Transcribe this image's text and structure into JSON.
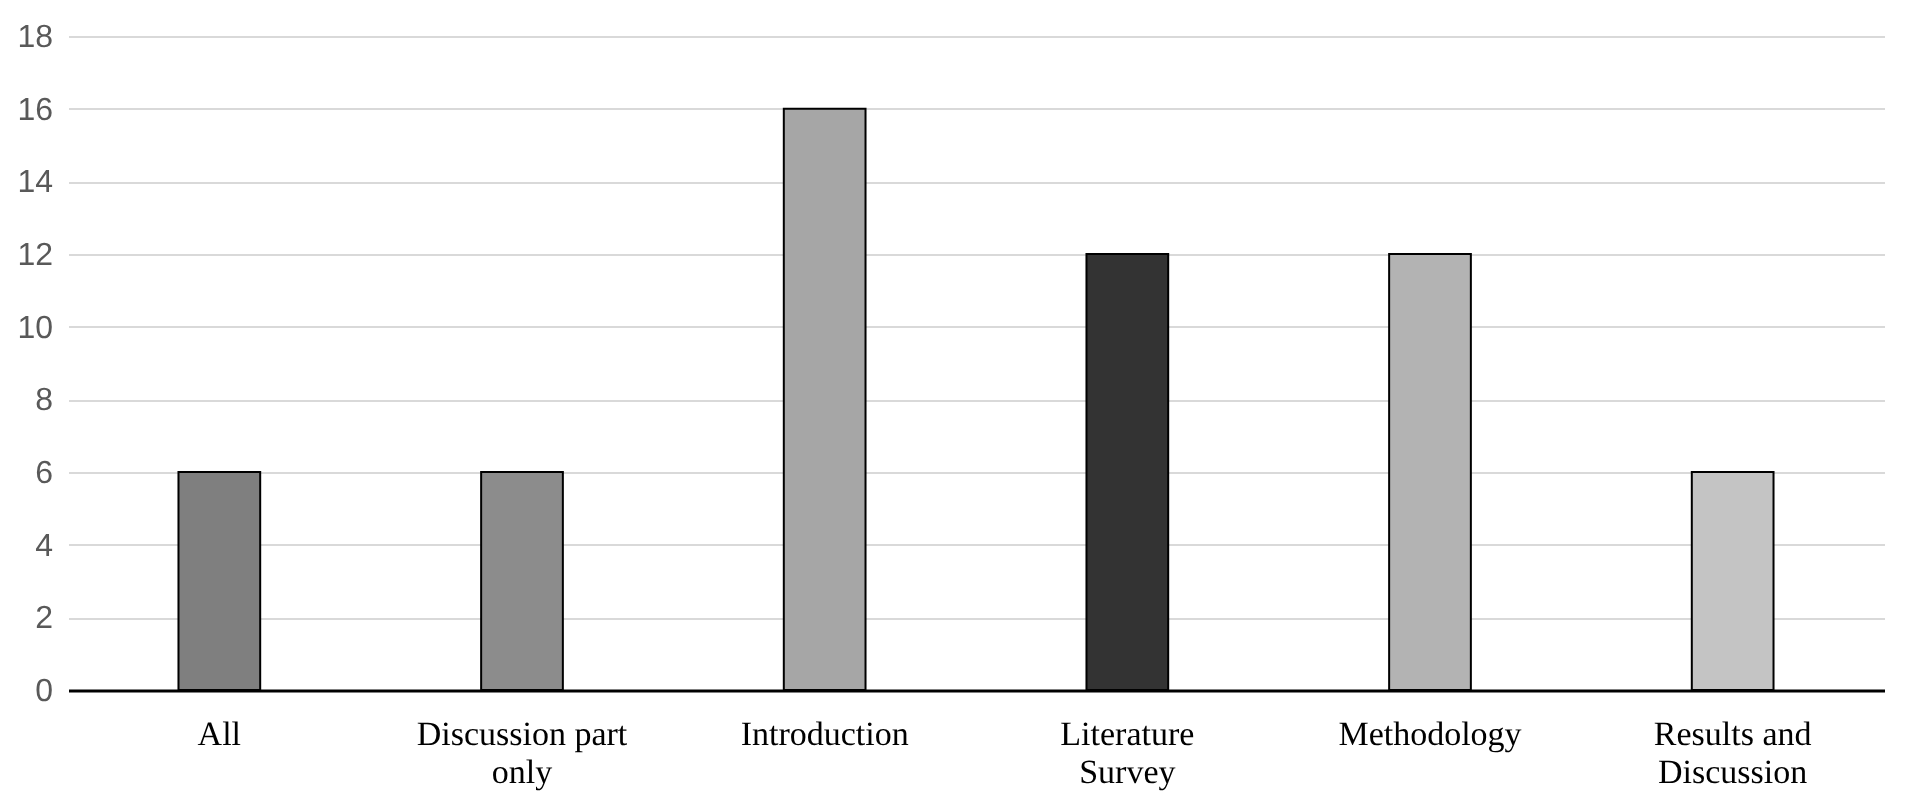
{
  "chart_data": {
    "type": "bar",
    "categories": [
      "All",
      "Discussion part only",
      "Introduction",
      "Literature Survey",
      "Methodology",
      "Results and Discussion"
    ],
    "values": [
      6,
      6,
      16,
      12,
      12,
      6
    ],
    "colors": [
      "#7f7f7f",
      "#8c8c8c",
      "#a6a6a6",
      "#333333",
      "#b3b3b3",
      "#c4c4c4"
    ],
    "ylim": [
      0,
      18
    ],
    "yticks": [
      0,
      2,
      4,
      6,
      8,
      10,
      12,
      14,
      16,
      18
    ],
    "grid": "y"
  }
}
